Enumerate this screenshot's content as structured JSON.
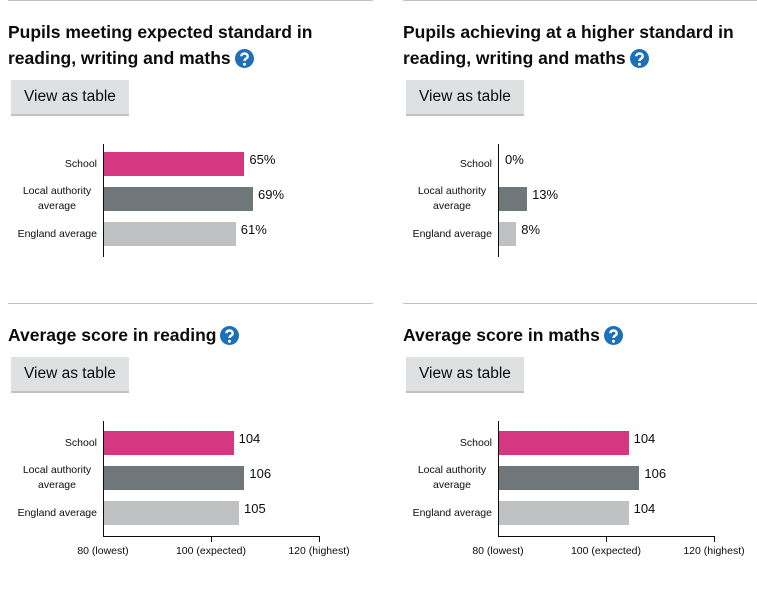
{
  "chart_data": [
    {
      "type": "bar",
      "orientation": "horizontal",
      "title": "Pupils meeting expected standard in reading, writing and maths",
      "button": "View as table",
      "categories": [
        "School",
        "Local authority average",
        "England average"
      ],
      "values": [
        65,
        69,
        61
      ],
      "value_labels": [
        "65%",
        "69%",
        "61%"
      ],
      "colors": [
        "#d53880",
        "#6f777b",
        "#bfc1c3"
      ],
      "xlim": [
        0,
        100
      ]
    },
    {
      "type": "bar",
      "orientation": "horizontal",
      "title": "Pupils achieving at a higher standard in reading, writing and maths",
      "button": "View as table",
      "categories": [
        "School",
        "Local authority average",
        "England average"
      ],
      "values": [
        0,
        13,
        8
      ],
      "value_labels": [
        "0%",
        "13%",
        "8%"
      ],
      "colors": [
        "#d53880",
        "#6f777b",
        "#bfc1c3"
      ],
      "xlim": [
        0,
        100
      ]
    },
    {
      "type": "bar",
      "orientation": "horizontal",
      "title": "Average score in reading",
      "button": "View as table",
      "categories": [
        "School",
        "Local authority average",
        "England average"
      ],
      "values": [
        104,
        106,
        105
      ],
      "colors": [
        "#d53880",
        "#6f777b",
        "#bfc1c3"
      ],
      "xlim": [
        80,
        120
      ],
      "xticks": [
        {
          "value": 80,
          "label": "80 (lowest)"
        },
        {
          "value": 100,
          "label": "100 (expected)"
        },
        {
          "value": 120,
          "label": "120 (highest)"
        }
      ]
    },
    {
      "type": "bar",
      "orientation": "horizontal",
      "title": "Average score in maths",
      "button": "View as table",
      "categories": [
        "School",
        "Local authority average",
        "England average"
      ],
      "values": [
        104,
        106,
        104
      ],
      "colors": [
        "#d53880",
        "#6f777b",
        "#bfc1c3"
      ],
      "xlim": [
        80,
        120
      ],
      "xticks": [
        {
          "value": 80,
          "label": "80 (lowest)"
        },
        {
          "value": 100,
          "label": "100 (expected)"
        },
        {
          "value": 120,
          "label": "120 (highest)"
        }
      ]
    }
  ]
}
